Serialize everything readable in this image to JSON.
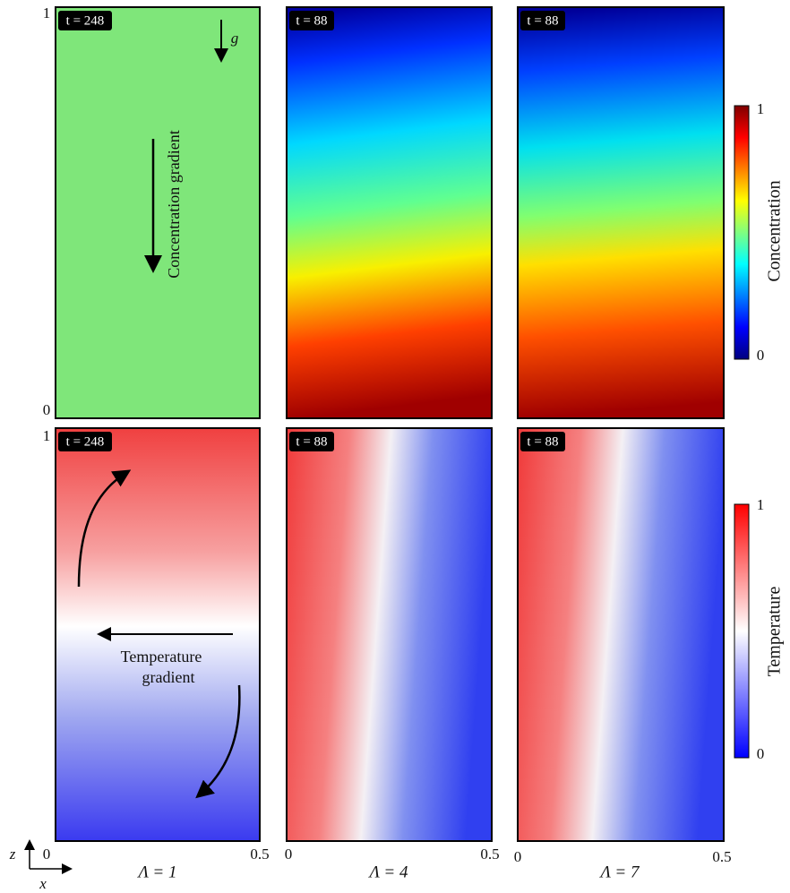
{
  "panels": [
    {
      "time": "t = 248"
    },
    {
      "time": "t = 88"
    },
    {
      "time": "t = 88"
    },
    {
      "time": "t = 248"
    },
    {
      "time": "t = 88"
    },
    {
      "time": "t = 88"
    }
  ],
  "row_ticks": [
    {
      "top": "1",
      "bottom": "0"
    },
    {
      "top": "1"
    }
  ],
  "x_ticks": [
    {
      "left": "0",
      "right": "0.5"
    },
    {
      "left": "0",
      "right": "0.5"
    },
    {
      "left": "0",
      "right": "0.5"
    }
  ],
  "lambda_labels": [
    "Λ = 1",
    "Λ = 4",
    "Λ = 7"
  ],
  "annotations": {
    "gravity": "g",
    "concentration_gradient": "Concentration gradient",
    "temperature_gradient": [
      "Temperature",
      "gradient"
    ]
  },
  "colorbars": [
    {
      "max": "1",
      "min": "0",
      "label": "Concentration"
    },
    {
      "max": "1",
      "min": "0",
      "label": "Temperature"
    }
  ],
  "axes_labels": {
    "z": "z",
    "x": "x"
  }
}
